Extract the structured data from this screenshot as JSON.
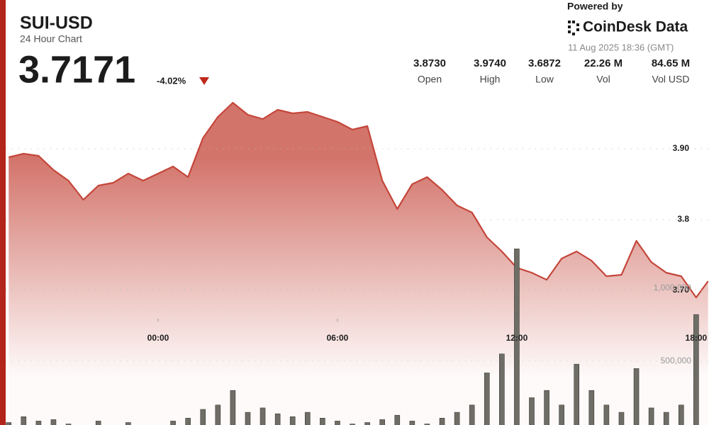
{
  "header": {
    "powered": "Powered by",
    "brand": "CoinDesk Data",
    "timestamp": "11 Aug 2025 18:36 (GMT)",
    "price": "3.7171",
    "change": "-4.02%",
    "stats": [
      {
        "figure": "3.8730",
        "caption": "Open"
      },
      {
        "figure": "3.9740",
        "caption": "High"
      },
      {
        "figure": "3.6872",
        "caption": "Low"
      },
      {
        "figure": "22.26 M",
        "caption": "Vol"
      },
      {
        "figure": "84.65 M",
        "caption": "Vol USD"
      }
    ]
  },
  "chart_data": {
    "type": "line",
    "title": "SUI-USD",
    "subtitle": "24 Hour Chart",
    "xlim": [
      -5.1,
      18.43
    ],
    "xticks": [
      {
        "value": 0,
        "label": "00:00"
      },
      {
        "value": 6,
        "label": "06:00"
      },
      {
        "value": 12,
        "label": "12:00"
      },
      {
        "value": 18,
        "label": "18:00"
      }
    ],
    "ylim": [
      3.66,
      4.02
    ],
    "yticks": [
      {
        "value": 3.7,
        "label": "3.70"
      },
      3.8,
      {
        "value": 3.9,
        "label": "3.90"
      }
    ],
    "y2lim": [
      0,
      1500000
    ],
    "y2ticks": [
      {
        "value": 500000,
        "label": "500,000"
      },
      {
        "value": 1000000,
        "label": "1,000,000"
      }
    ],
    "grid": true,
    "series": [
      {
        "type": "line",
        "color": "#c4463a",
        "x": [
          -5,
          -4.5,
          -4,
          -3.5,
          -3,
          -2.5,
          -2,
          -1.5,
          -1,
          -0.5,
          0,
          0.5,
          1,
          1.5,
          2,
          2.5,
          3,
          3.5,
          4,
          4.5,
          5,
          5.5,
          6,
          6.5,
          7,
          7.5,
          8,
          8.5,
          9,
          9.5,
          10,
          10.5,
          11,
          11.5,
          12,
          12.5,
          13,
          13.5,
          14,
          14.5,
          15,
          15.5,
          16,
          16.5,
          17,
          17.5,
          18,
          18.4
        ],
        "values": [
          3.888,
          3.893,
          3.89,
          3.87,
          3.855,
          3.828,
          3.848,
          3.852,
          3.865,
          3.855,
          3.865,
          3.875,
          3.86,
          3.915,
          3.945,
          3.965,
          3.948,
          3.942,
          3.955,
          3.95,
          3.952,
          3.945,
          3.938,
          3.927,
          3.932,
          3.855,
          3.815,
          3.85,
          3.86,
          3.842,
          3.82,
          3.81,
          3.775,
          3.755,
          3.732,
          3.725,
          3.715,
          3.745,
          3.755,
          3.742,
          3.72,
          3.722,
          3.77,
          3.74,
          3.725,
          3.72,
          3.69,
          3.713
        ]
      },
      {
        "type": "bar",
        "axis": "y2",
        "color": "#6e6e66",
        "x": [
          -5,
          -4.5,
          -4,
          -3.5,
          -3,
          -2.5,
          -2,
          -1.5,
          -1,
          -0.5,
          0,
          0.5,
          1,
          1.5,
          2,
          2.5,
          3,
          3.5,
          4,
          4.5,
          5,
          5.5,
          6,
          6.5,
          7,
          7.5,
          8,
          8.5,
          9,
          9.5,
          10,
          10.5,
          11,
          11.5,
          12,
          12.5,
          13,
          13.5,
          14,
          14.5,
          15,
          15.5,
          16,
          16.5,
          17,
          17.5,
          18,
          18.4
        ],
        "values": [
          80000,
          120000,
          90000,
          100000,
          70000,
          60000,
          90000,
          60000,
          80000,
          50000,
          60000,
          90000,
          110000,
          170000,
          200000,
          300000,
          150000,
          180000,
          140000,
          120000,
          150000,
          110000,
          90000,
          70000,
          80000,
          100000,
          130000,
          90000,
          70000,
          110000,
          150000,
          200000,
          420000,
          550000,
          1270000,
          250000,
          300000,
          200000,
          480000,
          300000,
          200000,
          150000,
          450000,
          180000,
          150000,
          200000,
          820000,
          60000
        ]
      }
    ]
  }
}
